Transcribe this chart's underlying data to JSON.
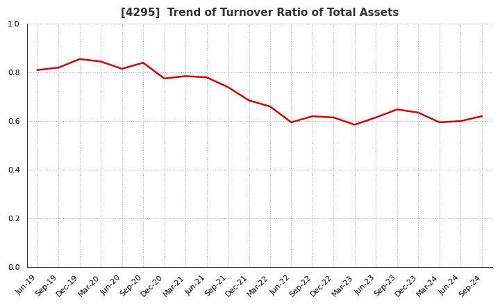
{
  "title": "[4295]  Trend of Turnover Ratio of Total Assets",
  "x_labels": [
    "Jun-19",
    "Sep-19",
    "Dec-19",
    "Mar-20",
    "Jun-20",
    "Sep-20",
    "Dec-20",
    "Mar-21",
    "Jun-21",
    "Sep-21",
    "Dec-21",
    "Mar-22",
    "Jun-22",
    "Sep-22",
    "Dec-22",
    "Mar-23",
    "Jun-23",
    "Sep-23",
    "Dec-23",
    "Mar-24",
    "Jun-24",
    "Sep-24"
  ],
  "values": [
    0.81,
    0.82,
    0.855,
    0.845,
    0.815,
    0.84,
    0.775,
    0.785,
    0.78,
    0.74,
    0.685,
    0.66,
    0.595,
    0.62,
    0.615,
    0.585,
    0.615,
    0.648,
    0.635,
    0.595,
    0.6,
    0.62
  ],
  "ylim": [
    0.0,
    1.0
  ],
  "yticks": [
    0.0,
    0.2,
    0.4,
    0.6,
    0.8,
    1.0
  ],
  "line_color": "#cc0000",
  "line_width": 1.8,
  "bg_color": "#ffffff",
  "grid_color": "#aaaaaa",
  "title_fontsize": 11,
  "tick_fontsize": 8,
  "title_color": "#333333"
}
